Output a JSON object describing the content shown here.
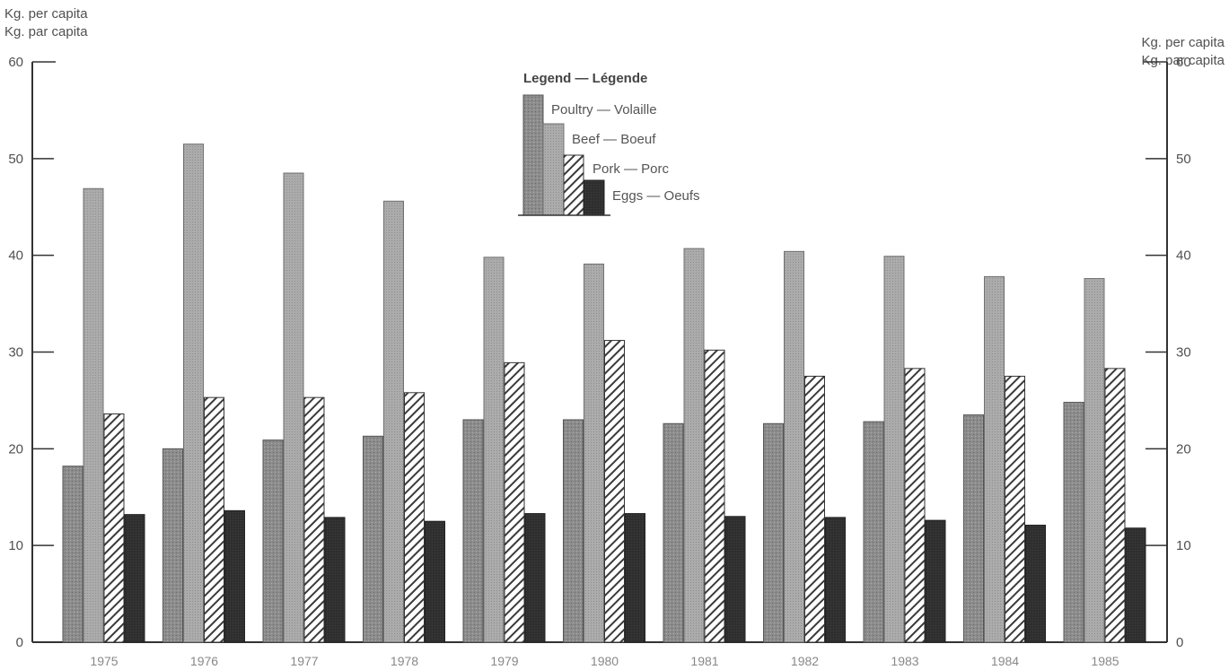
{
  "chart_data": {
    "type": "bar",
    "ylabel_left": [
      "Kg. per capita",
      "Kg. par capita"
    ],
    "ylabel_right": [
      "Kg. per capita",
      "Kg. par capita"
    ],
    "ylim": [
      0,
      60
    ],
    "yticks": [
      0,
      10,
      20,
      30,
      40,
      50,
      60
    ],
    "categories": [
      "1975",
      "1976",
      "1977",
      "1978",
      "1979",
      "1980",
      "1981",
      "1982",
      "1983",
      "1984",
      "1985"
    ],
    "legend_title": "Legend — Légende",
    "legend_position": "top-center",
    "grid": false,
    "series": [
      {
        "name": "Poultry — Volaille",
        "values": [
          18.2,
          20.0,
          20.9,
          21.3,
          23.0,
          23.0,
          22.6,
          22.6,
          22.8,
          23.5,
          24.8
        ]
      },
      {
        "name": "Beef — Boeuf",
        "values": [
          46.9,
          51.5,
          48.5,
          45.6,
          39.8,
          39.1,
          40.7,
          40.4,
          39.9,
          37.8,
          37.6
        ]
      },
      {
        "name": "Pork — Porc",
        "values": [
          23.6,
          25.3,
          25.3,
          25.8,
          28.9,
          31.2,
          30.2,
          27.5,
          28.3,
          27.5,
          28.3
        ]
      },
      {
        "name": "Eggs — Oeufs",
        "values": [
          13.2,
          13.6,
          12.9,
          12.5,
          13.3,
          13.3,
          13.0,
          12.9,
          12.6,
          12.1,
          11.8
        ]
      }
    ],
    "colors": {
      "poultry": "#8a8a8a",
      "beef": "#a8a8a8",
      "pork_stripe": "#3a3a3a",
      "eggs": "#2e2e2e",
      "axis": "#333333"
    }
  }
}
